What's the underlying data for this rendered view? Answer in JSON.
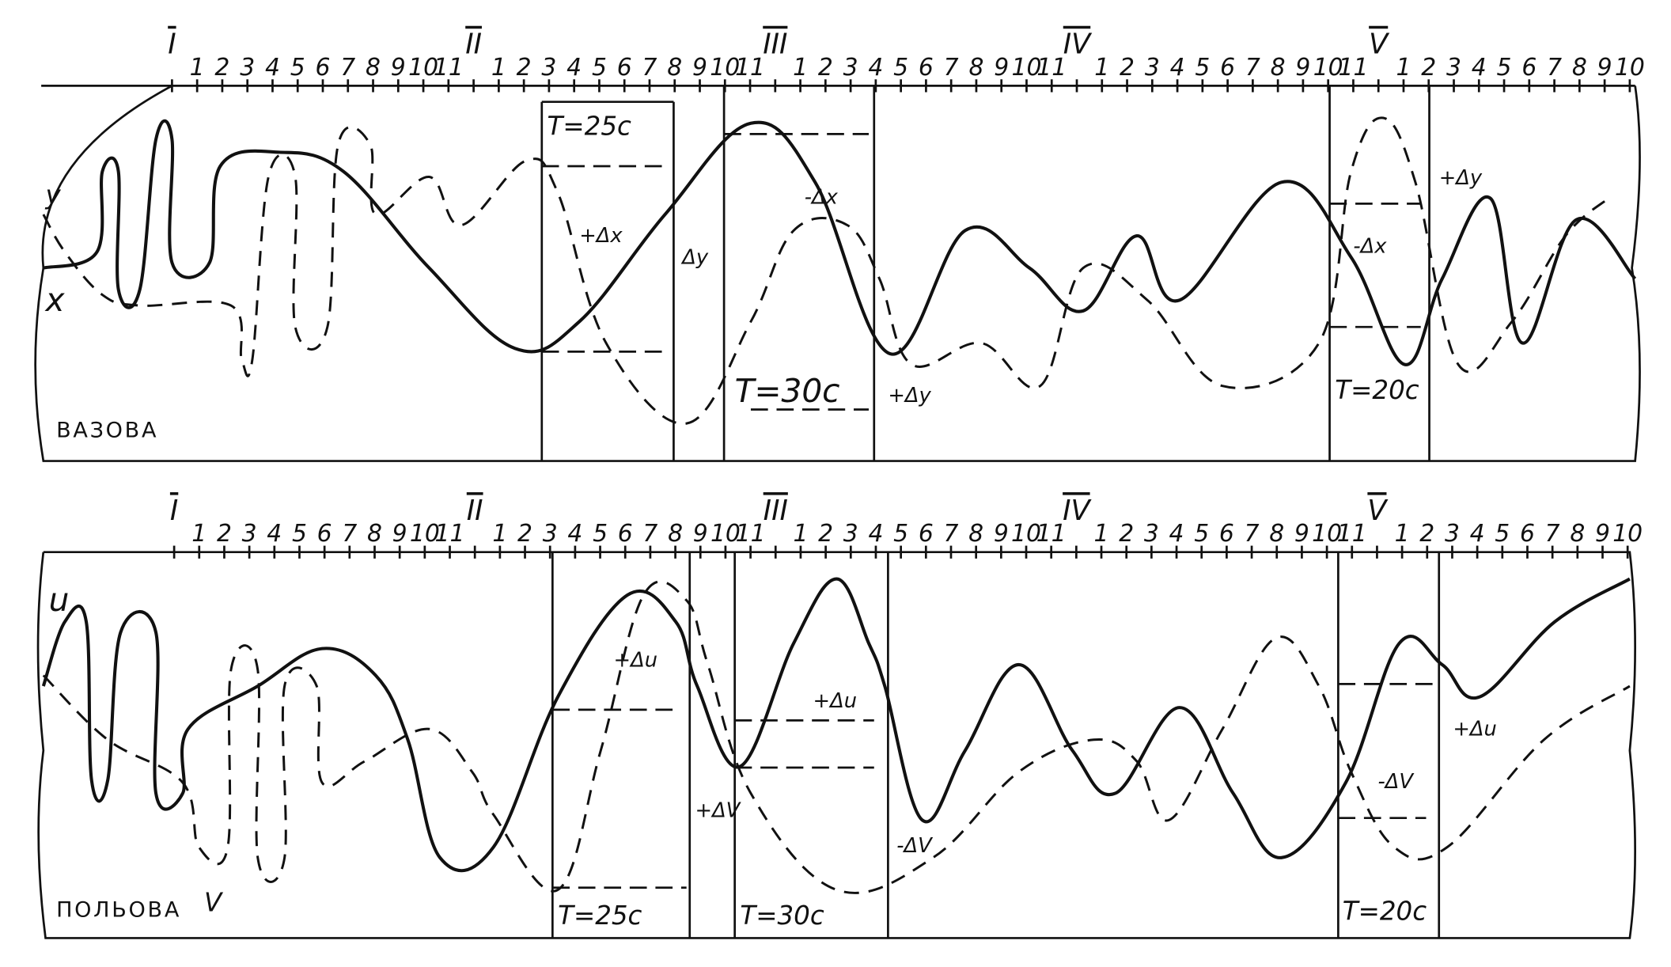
{
  "panels": [
    {
      "scale": [
        "I",
        "1",
        "2",
        "3",
        "4",
        "5",
        "6",
        "7",
        "8",
        "9",
        "10",
        "11",
        "II",
        "1",
        "2",
        "3",
        "4",
        "5",
        "6",
        "7",
        "8",
        "9",
        "10",
        "11",
        "III",
        "1",
        "2",
        "3",
        "4",
        "5",
        "6",
        "7",
        "8",
        "9",
        "10",
        "11",
        "IV",
        "1",
        "2",
        "3",
        "4",
        "5",
        "6",
        "7",
        "8",
        "9",
        "10",
        "11",
        "V",
        "1",
        "2",
        "3",
        "4",
        "5",
        "6",
        "7",
        "8",
        "9",
        "10"
      ],
      "annotations": [
        "y",
        "x",
        "ВАЗОВА",
        "T=25c",
        "+Δx",
        "Δy",
        "T=30c",
        "-Δx",
        "+Δy",
        "-Δx",
        "+Δy",
        "T=20c"
      ]
    },
    {
      "scale": [
        "I",
        "1",
        "2",
        "3",
        "4",
        "5",
        "6",
        "7",
        "8",
        "9",
        "10",
        "11",
        "II",
        "1",
        "2",
        "3",
        "4",
        "5",
        "6",
        "7",
        "8",
        "9",
        "10",
        "11",
        "III",
        "1",
        "2",
        "3",
        "4",
        "5",
        "6",
        "7",
        "8",
        "9",
        "10",
        "11",
        "IV",
        "1",
        "2",
        "3",
        "4",
        "5",
        "6",
        "7",
        "8",
        "9",
        "10",
        "11",
        "V",
        "1",
        "2",
        "3",
        "4",
        "5",
        "6",
        "7",
        "8",
        "9",
        "10"
      ],
      "annotations": [
        "u",
        "V",
        "ПОЛЬОВА",
        "T=25c",
        "+Δu",
        "+ΔV",
        "T=30c",
        "+Δu",
        "-ΔV",
        "T=20c",
        "-ΔV",
        "+Δu"
      ]
    }
  ]
}
